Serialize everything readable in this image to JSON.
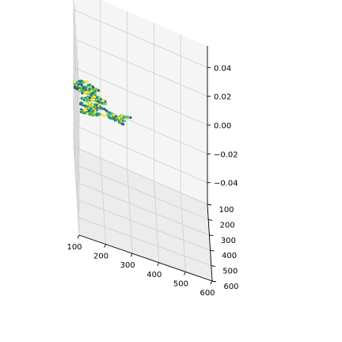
{
  "chart_data": {
    "type": "scatter",
    "projection": "3d",
    "title": "",
    "xlabel": "",
    "ylabel": "",
    "zlabel": "",
    "xlim": [
      100,
      600
    ],
    "ylim": [
      100,
      600
    ],
    "zlim": [
      -0.055,
      0.055
    ],
    "x_ticks": [
      "100",
      "200",
      "300",
      "400",
      "500",
      "600"
    ],
    "y_ticks": [
      "100",
      "200",
      "300",
      "400",
      "500",
      "600"
    ],
    "z_ticks": [
      "−0.04",
      "−0.02",
      "0.00",
      "0.02",
      "0.04"
    ],
    "grid": true,
    "colormap": "viridis",
    "colors": {
      "dark": "#2c5a78",
      "mid": "#21918c",
      "light": "#5ec962",
      "bright": "#fde725"
    },
    "clusters": [
      {
        "x": 120,
        "y": 190,
        "count": 260
      },
      {
        "x": 120,
        "y": 320,
        "count": 160
      },
      {
        "x": 150,
        "y": 245,
        "count": 200
      },
      {
        "x": 240,
        "y": 300,
        "count": 90
      }
    ],
    "z_value": 0.0
  }
}
